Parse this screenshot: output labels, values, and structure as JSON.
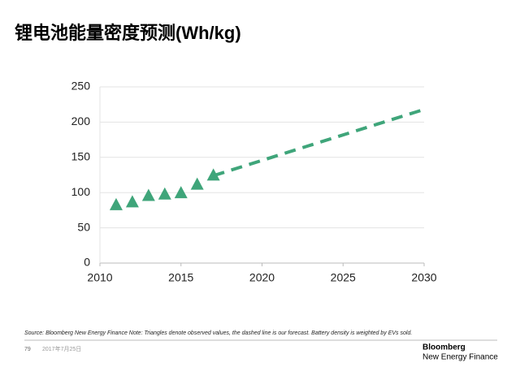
{
  "chart_data": {
    "type": "scatter",
    "title": "锂电池能量密度预测(Wh/kg)",
    "xlim": [
      2010,
      2030
    ],
    "xticks": [
      2010,
      2015,
      2020,
      2025,
      2030
    ],
    "ylim": [
      0,
      250
    ],
    "yticks": [
      0,
      50,
      100,
      150,
      200,
      250
    ],
    "grid": true,
    "series": [
      {
        "type": "scatter",
        "marker": "triangle",
        "color": "#3fa57a",
        "x": [
          2011,
          2012,
          2013,
          2014,
          2015,
          2016,
          2017
        ],
        "values": [
          82,
          86,
          95,
          97,
          99,
          111,
          124
        ]
      },
      {
        "type": "line",
        "line_style": "dashed",
        "color": "#3fa57a",
        "x": [
          2017,
          2030
        ],
        "values": [
          124,
          218
        ]
      }
    ]
  },
  "source": "Source: Bloomberg New Energy Finance Note: Triangles denote observed values, the dashed line is our forecast. Battery density is weighted by EVs sold.",
  "footer": {
    "page": "79",
    "date": "2017年7月25日",
    "brand_line1": "Bloomberg",
    "brand_line2": "New Energy Finance"
  }
}
